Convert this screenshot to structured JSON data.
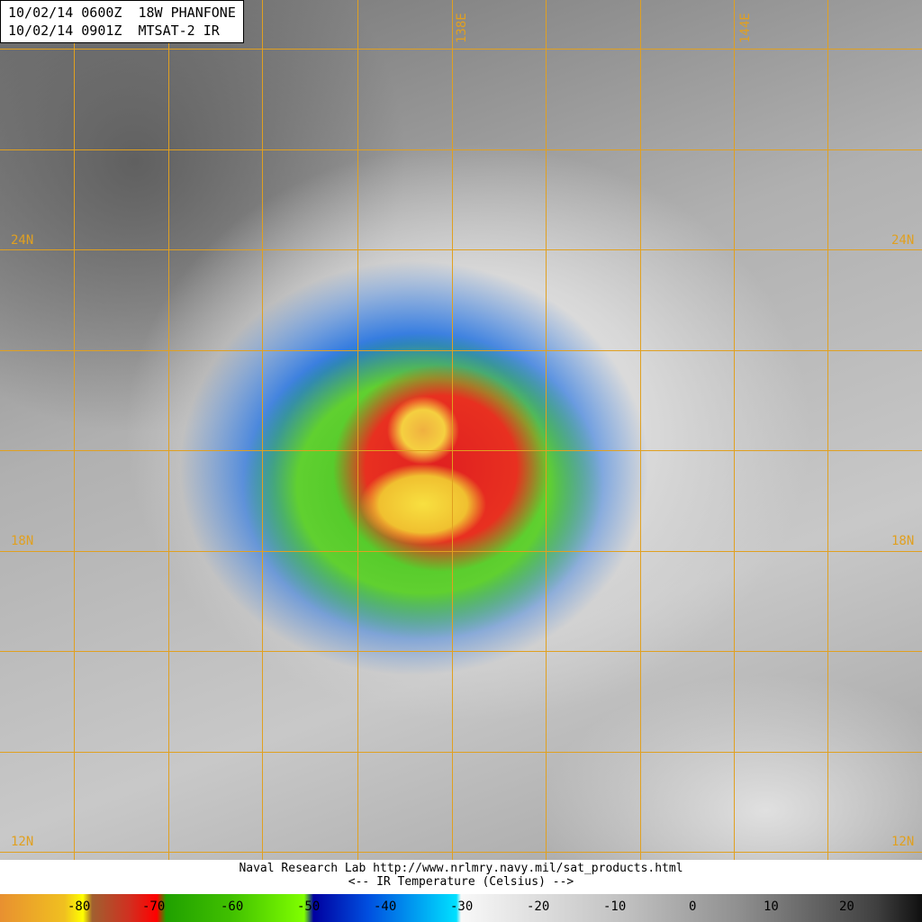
{
  "header": {
    "line1": "10/02/14 0600Z  18W PHANFONE",
    "line2": "10/02/14 0901Z  MTSAT-2 IR"
  },
  "grid": {
    "lat_labels": [
      "24N",
      "18N",
      "12N"
    ],
    "lon_labels": [
      "138E",
      "144E"
    ],
    "color": "#e0a020"
  },
  "credits": {
    "line1": "Naval Research Lab http://www.nrlmry.navy.mil/sat_products.html",
    "line2": "<--   IR Temperature (Celsius)   -->"
  },
  "colorbar": {
    "ticks": [
      "-80",
      "-70",
      "-60",
      "-50",
      "-40",
      "-30",
      "-20",
      "-10",
      "0",
      "10",
      "20"
    ]
  }
}
